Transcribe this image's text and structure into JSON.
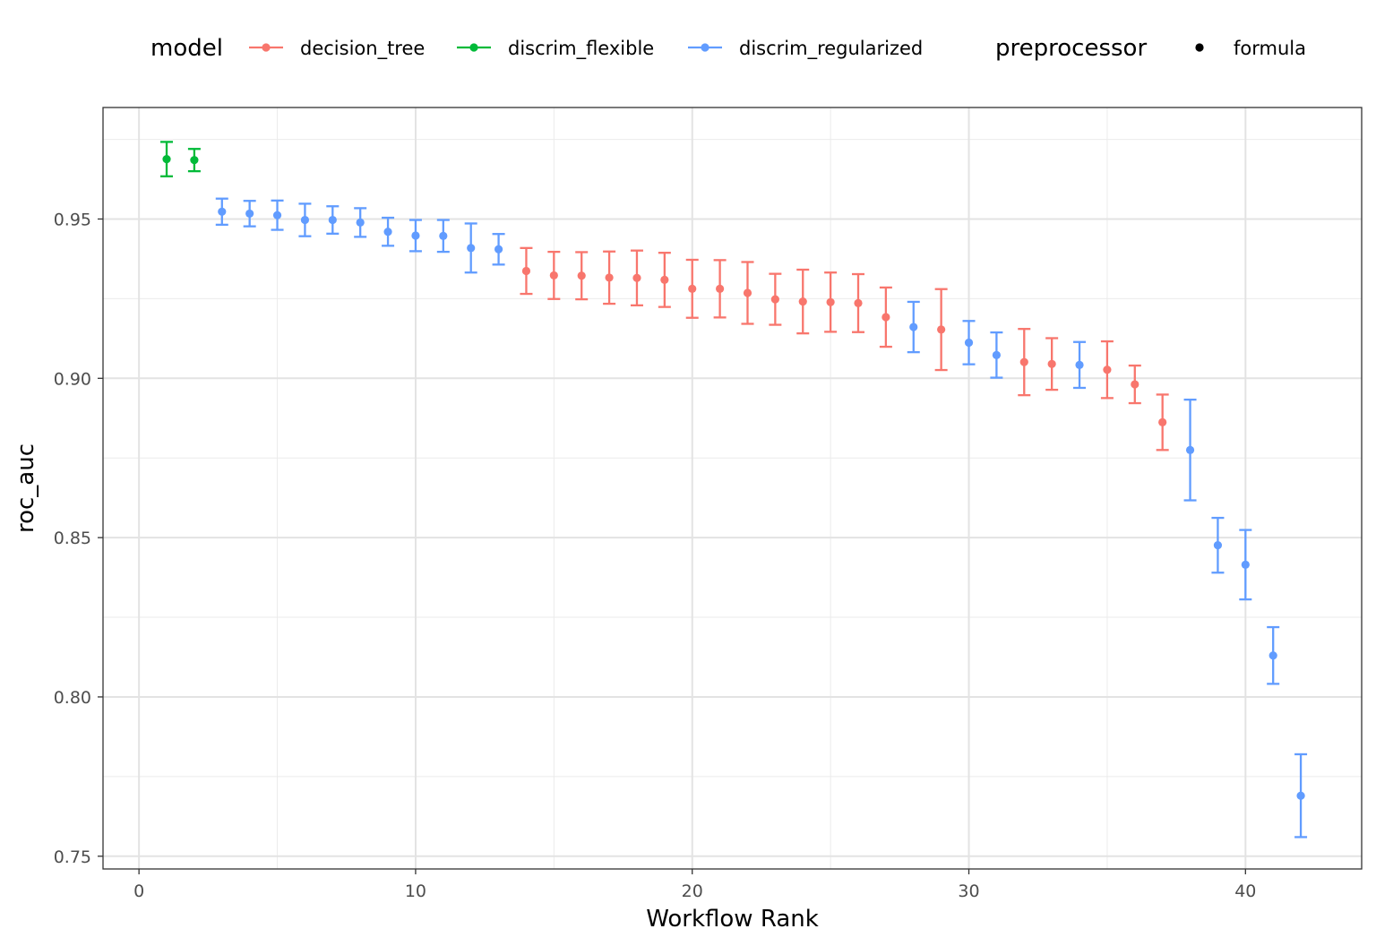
{
  "chart_data": {
    "type": "scatter",
    "xlabel": "Workflow Rank",
    "ylabel": "roc_auc",
    "xlim": [
      -1.3,
      44.2
    ],
    "ylim": [
      0.746,
      0.985
    ],
    "x_ticks": [
      0,
      10,
      20,
      30,
      40
    ],
    "x_tick_labels": [
      "0",
      "10",
      "20",
      "30",
      "40"
    ],
    "y_ticks": [
      0.75,
      0.8,
      0.85,
      0.9,
      0.95
    ],
    "y_tick_labels": [
      "0.75",
      "0.80",
      "0.85",
      "0.90",
      "0.95"
    ],
    "x_minor_ticks": [
      5,
      15,
      25,
      35
    ],
    "y_minor_ticks": [
      0.775,
      0.825,
      0.875,
      0.925,
      0.975
    ],
    "grid": true,
    "error_bars": true,
    "legend_position": "top",
    "legends": [
      {
        "title": "model",
        "entries": [
          {
            "label": "decision_tree",
            "color": "#F8766D",
            "style": "line-point"
          },
          {
            "label": "discrim_flexible",
            "color": "#00BA38",
            "style": "line-point"
          },
          {
            "label": "discrim_regularized",
            "color": "#619CFF",
            "style": "line-point"
          }
        ]
      },
      {
        "title": "preprocessor",
        "entries": [
          {
            "label": "formula",
            "color": "#000000",
            "style": "point"
          }
        ]
      }
    ],
    "series": [
      {
        "name": "decision_tree",
        "color": "#F8766D",
        "points": [
          {
            "x": 14,
            "y": 0.9337,
            "lo": 0.9265,
            "hi": 0.9409
          },
          {
            "x": 15,
            "y": 0.9323,
            "lo": 0.9249,
            "hi": 0.9397
          },
          {
            "x": 16,
            "y": 0.9322,
            "lo": 0.9248,
            "hi": 0.9396
          },
          {
            "x": 17,
            "y": 0.9316,
            "lo": 0.9234,
            "hi": 0.9398
          },
          {
            "x": 18,
            "y": 0.9315,
            "lo": 0.9229,
            "hi": 0.9401
          },
          {
            "x": 19,
            "y": 0.9309,
            "lo": 0.9224,
            "hi": 0.9394
          },
          {
            "x": 20,
            "y": 0.9281,
            "lo": 0.919,
            "hi": 0.9372
          },
          {
            "x": 21,
            "y": 0.9281,
            "lo": 0.9191,
            "hi": 0.9371
          },
          {
            "x": 22,
            "y": 0.9268,
            "lo": 0.9171,
            "hi": 0.9365
          },
          {
            "x": 23,
            "y": 0.9248,
            "lo": 0.9168,
            "hi": 0.9328
          },
          {
            "x": 24,
            "y": 0.9241,
            "lo": 0.9141,
            "hi": 0.9341
          },
          {
            "x": 25,
            "y": 0.9239,
            "lo": 0.9146,
            "hi": 0.9332
          },
          {
            "x": 26,
            "y": 0.9236,
            "lo": 0.9145,
            "hi": 0.9327
          },
          {
            "x": 27,
            "y": 0.9192,
            "lo": 0.9099,
            "hi": 0.9285
          },
          {
            "x": 29,
            "y": 0.9153,
            "lo": 0.9026,
            "hi": 0.928
          },
          {
            "x": 32,
            "y": 0.9051,
            "lo": 0.8947,
            "hi": 0.9155
          },
          {
            "x": 33,
            "y": 0.9045,
            "lo": 0.8964,
            "hi": 0.9126
          },
          {
            "x": 35,
            "y": 0.9027,
            "lo": 0.8938,
            "hi": 0.9116
          },
          {
            "x": 36,
            "y": 0.8981,
            "lo": 0.8922,
            "hi": 0.904
          },
          {
            "x": 37,
            "y": 0.8862,
            "lo": 0.8775,
            "hi": 0.8949
          }
        ]
      },
      {
        "name": "discrim_flexible",
        "color": "#00BA38",
        "points": [
          {
            "x": 1,
            "y": 0.9688,
            "lo": 0.9634,
            "hi": 0.9742
          },
          {
            "x": 2,
            "y": 0.9685,
            "lo": 0.965,
            "hi": 0.972
          }
        ]
      },
      {
        "name": "discrim_regularized",
        "color": "#619CFF",
        "points": [
          {
            "x": 3,
            "y": 0.9523,
            "lo": 0.9482,
            "hi": 0.9564
          },
          {
            "x": 4,
            "y": 0.9517,
            "lo": 0.9477,
            "hi": 0.9557
          },
          {
            "x": 5,
            "y": 0.9512,
            "lo": 0.9466,
            "hi": 0.9558
          },
          {
            "x": 6,
            "y": 0.9497,
            "lo": 0.9446,
            "hi": 0.9548
          },
          {
            "x": 7,
            "y": 0.9497,
            "lo": 0.9454,
            "hi": 0.954
          },
          {
            "x": 8,
            "y": 0.9489,
            "lo": 0.9444,
            "hi": 0.9534
          },
          {
            "x": 9,
            "y": 0.946,
            "lo": 0.9416,
            "hi": 0.9504
          },
          {
            "x": 10,
            "y": 0.9448,
            "lo": 0.9399,
            "hi": 0.9497
          },
          {
            "x": 11,
            "y": 0.9447,
            "lo": 0.9397,
            "hi": 0.9497
          },
          {
            "x": 12,
            "y": 0.9409,
            "lo": 0.9332,
            "hi": 0.9486
          },
          {
            "x": 13,
            "y": 0.9405,
            "lo": 0.9357,
            "hi": 0.9453
          },
          {
            "x": 28,
            "y": 0.9161,
            "lo": 0.9082,
            "hi": 0.924
          },
          {
            "x": 30,
            "y": 0.9112,
            "lo": 0.9044,
            "hi": 0.918
          },
          {
            "x": 31,
            "y": 0.9073,
            "lo": 0.9002,
            "hi": 0.9144
          },
          {
            "x": 34,
            "y": 0.9042,
            "lo": 0.897,
            "hi": 0.9114
          },
          {
            "x": 38,
            "y": 0.8775,
            "lo": 0.8617,
            "hi": 0.8933
          },
          {
            "x": 39,
            "y": 0.8476,
            "lo": 0.839,
            "hi": 0.8562
          },
          {
            "x": 40,
            "y": 0.8415,
            "lo": 0.8306,
            "hi": 0.8524
          },
          {
            "x": 41,
            "y": 0.813,
            "lo": 0.8041,
            "hi": 0.8219
          },
          {
            "x": 42,
            "y": 0.769,
            "lo": 0.756,
            "hi": 0.782
          }
        ]
      }
    ]
  }
}
